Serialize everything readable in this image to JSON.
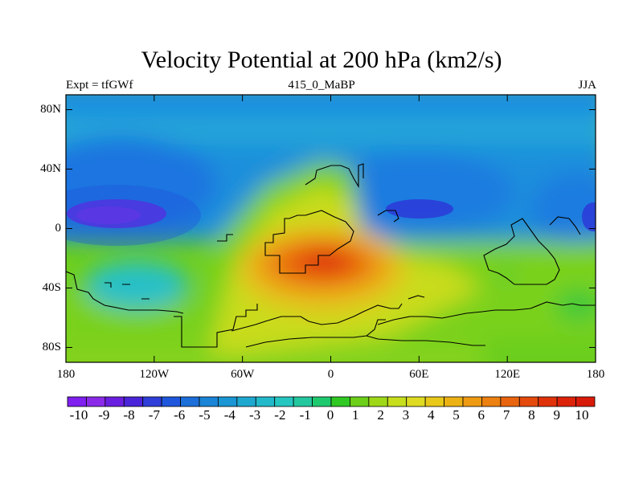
{
  "title": "Velocity Potential at 200 hPa (km2/s)",
  "left_label": "Expt = tfGWf",
  "center_label": "415_0_MaBP",
  "right_label": "JJA",
  "y_axis": {
    "ticks": [
      "80N",
      "40N",
      "0",
      "40S",
      "80S"
    ],
    "values": [
      80,
      40,
      0,
      -40,
      -80
    ],
    "range": [
      -90,
      90
    ]
  },
  "x_axis": {
    "ticks": [
      "180",
      "120W",
      "60W",
      "0",
      "60E",
      "120E",
      "180"
    ],
    "values": [
      -180,
      -120,
      -60,
      0,
      60,
      120,
      180
    ],
    "range": [
      -180,
      180
    ]
  },
  "colorbar": {
    "labels": [
      "-10",
      "-9",
      "-8",
      "-7",
      "-6",
      "-5",
      "-4",
      "-3",
      "-2",
      "-1",
      "0",
      "1",
      "2",
      "3",
      "4",
      "5",
      "6",
      "7",
      "8",
      "9",
      "10"
    ],
    "colors": [
      "#7f1ff0",
      "#8a2ae8",
      "#6a1ee0",
      "#4a24d8",
      "#2f3ed8",
      "#1f57dc",
      "#1c6ed8",
      "#1a84d6",
      "#1996d3",
      "#1ea8d0",
      "#22b9ca",
      "#25c6c0",
      "#23c79e",
      "#1ec96e",
      "#30c823",
      "#6ccf19",
      "#9ed818",
      "#c6de1c",
      "#dedb22",
      "#e8c819",
      "#ecb213",
      "#ee9a12",
      "#ec8010",
      "#e8640e",
      "#e44a0c",
      "#e0320a",
      "#dd220a",
      "#d81a08"
    ]
  },
  "map_data": {
    "field": "velocity potential",
    "level": "200 hPa",
    "units": "km2/s",
    "season": "JJA",
    "centers": [
      {
        "name": "min",
        "lon": -145,
        "lat": 15,
        "value": -10
      },
      {
        "name": "min",
        "lon": 57,
        "lat": 15,
        "value": -7
      },
      {
        "name": "min",
        "lon": 178,
        "lat": 8,
        "value": -7
      },
      {
        "name": "max",
        "lon": -10,
        "lat": -25,
        "value": 10
      }
    ]
  }
}
